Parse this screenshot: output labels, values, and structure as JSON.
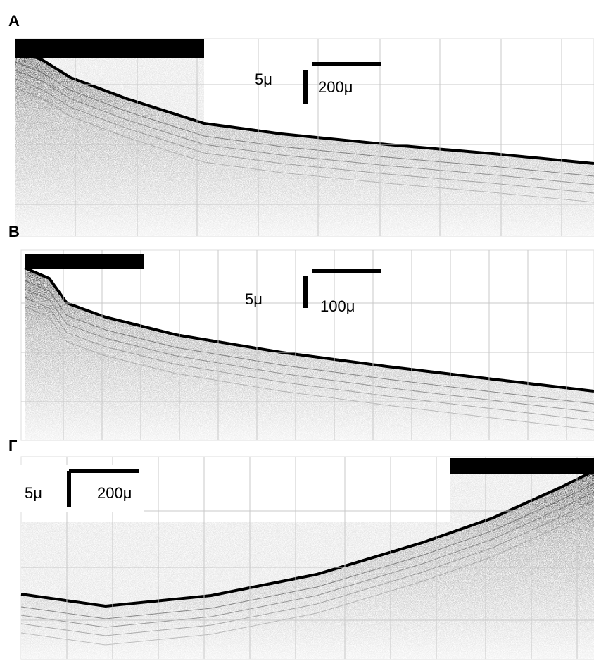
{
  "panels": [
    {
      "label": "А",
      "scale_vertical": "5μ",
      "scale_horizontal": "200μ"
    },
    {
      "label": "В",
      "scale_vertical": "5μ",
      "scale_horizontal": "100μ"
    },
    {
      "label": "Г",
      "scale_vertical": "5μ",
      "scale_horizontal": "200μ"
    }
  ]
}
